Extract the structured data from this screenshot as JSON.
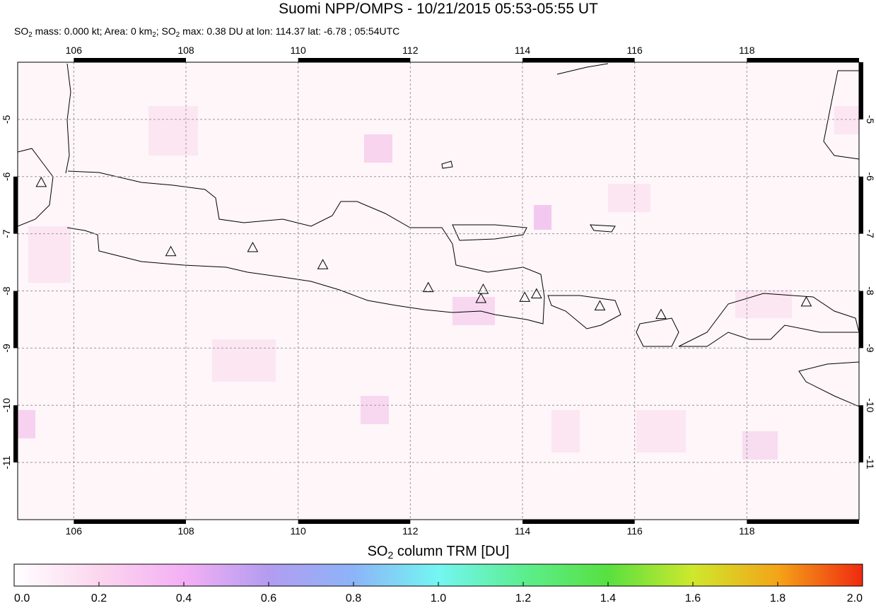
{
  "title": "Suomi NPP/OMPS - 10/21/2015 05:53-05:55 UT",
  "subtitle_parts": [
    "SO",
    "2",
    " mass: 0.000 kt; Area: 0 km",
    "2",
    "; SO",
    "2",
    " max: 0.38 DU at lon: 114.37 lat: -6.78 ; 05:54UTC"
  ],
  "map": {
    "xlim": [
      105,
      120
    ],
    "ylim": [
      -12,
      -4
    ],
    "xticks": [
      106,
      108,
      110,
      112,
      114,
      116,
      118
    ],
    "yticks": [
      -5,
      -6,
      -7,
      -8,
      -9,
      -10,
      -11
    ],
    "volcanoes": {
      "lon": [
        105.42,
        107.73,
        109.19,
        110.44,
        112.32,
        113.3,
        113.26,
        114.04,
        114.25,
        115.38,
        116.47,
        119.06
      ],
      "lat": [
        -6.1,
        -7.31,
        -7.24,
        -7.54,
        -7.94,
        -7.97,
        -8.13,
        -8.11,
        -8.05,
        -8.26,
        -8.41,
        -8.19
      ]
    }
  },
  "colorbar": {
    "label_parts": [
      "SO",
      "2",
      " column TRM [DU]"
    ],
    "lim": [
      0,
      2
    ],
    "ticks": [
      {
        "value": 0,
        "label": "0.0"
      },
      0.2,
      0.4,
      0.6,
      0.8,
      {
        "value": 1,
        "label": "1.0"
      },
      1.2,
      1.4,
      1.6,
      1.8,
      {
        "value": 2,
        "label": "2.0"
      }
    ]
  }
}
